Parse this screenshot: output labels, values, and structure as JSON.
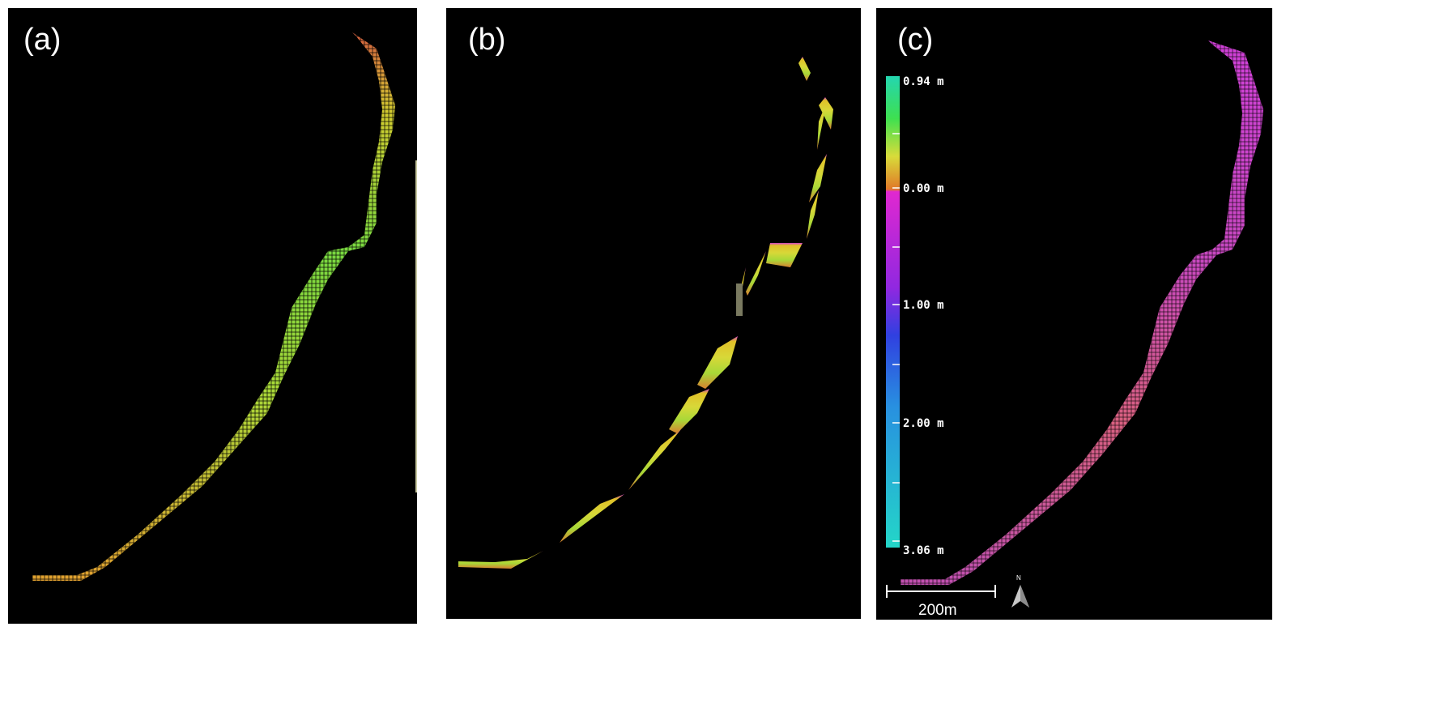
{
  "panels": [
    {
      "id": "a",
      "label": "(a)"
    },
    {
      "id": "b",
      "label": "(b)"
    },
    {
      "id": "c",
      "label": "(c)"
    }
  ],
  "colorbar": {
    "stops": [
      "0.94 m",
      "0.00 m",
      "1.00 m",
      "2.00 m",
      "3.06 m"
    ],
    "colors": {
      "top": "#24d6b0",
      "green": "#3ee050",
      "yellow": "#d8dc3a",
      "orange": "#e07828",
      "magenta": "#e028d0",
      "purple": "#7028e0",
      "blue": "#2860e0",
      "lightblue": "#28a0e0",
      "cyan": "#24d6c8"
    }
  },
  "scale_bar": {
    "label": "200m"
  },
  "north_arrow": {
    "label": "N"
  },
  "colors": {
    "background": "#000000",
    "river_a": "#c8d828",
    "river_b": "#c8e030",
    "river_c": "#d040c8"
  }
}
